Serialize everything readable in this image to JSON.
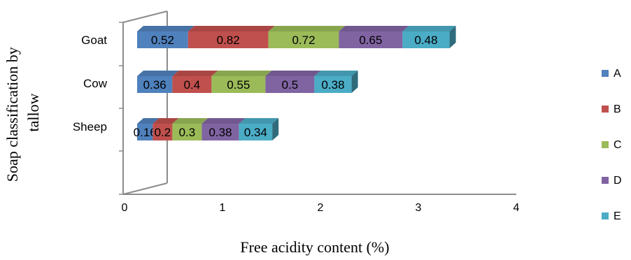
{
  "chart_data": {
    "type": "bar",
    "orientation": "horizontal",
    "stacked": true,
    "style": "3d",
    "categories": [
      "Sheep",
      "Cow",
      "Goat"
    ],
    "series": [
      {
        "name": "A",
        "color": "#4F81BD",
        "values": [
          0.16,
          0.36,
          0.52
        ]
      },
      {
        "name": "B",
        "color": "#C0504D",
        "values": [
          0.2,
          0.4,
          0.82
        ]
      },
      {
        "name": "C",
        "color": "#9BBB59",
        "values": [
          0.3,
          0.55,
          0.72
        ]
      },
      {
        "name": "D",
        "color": "#8064A2",
        "values": [
          0.38,
          0.5,
          0.65
        ]
      },
      {
        "name": "E",
        "color": "#4BACC6",
        "values": [
          0.34,
          0.38,
          0.48
        ]
      }
    ],
    "data_labels": {
      "Sheep": [
        "0.16",
        "0.2",
        "0.3",
        "0.38",
        "0.34"
      ],
      "Cow": [
        "0.36",
        "0.4",
        "0.55",
        "0.5",
        "0.38"
      ],
      "Goat": [
        "0.52",
        "0.82",
        "0.72",
        "0.65",
        "0.48"
      ]
    },
    "xlabel": "Free acidity content (%)",
    "ylabel": "Soap classification by tallow",
    "xlim": [
      0,
      4
    ],
    "xticks": [
      "0",
      "1",
      "2",
      "3",
      "4"
    ],
    "grid": false,
    "legend_position": "right"
  }
}
